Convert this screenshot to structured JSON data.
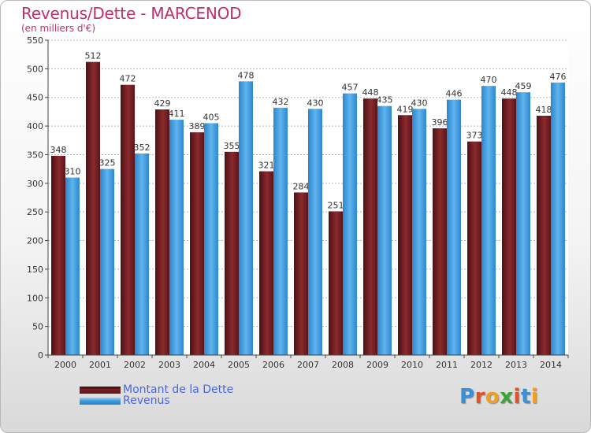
{
  "title": "Revenus/Dette - MARCENOD",
  "subtitle": "(en milliers d'€)",
  "logo_text": "Proxiti",
  "colors": {
    "dette": "#7b1f24",
    "revenus": "#3e9ee0",
    "title": "#c0306a",
    "legend_text": "#4a66e0"
  },
  "chart_data": {
    "type": "bar",
    "title": "Revenus/Dette - MARCENOD",
    "ylabel": "(en milliers d'€)",
    "xlabel": "",
    "ylim": [
      0,
      550
    ],
    "yticks": [
      0,
      50,
      100,
      150,
      200,
      250,
      300,
      350,
      400,
      450,
      500,
      550
    ],
    "grid": true,
    "legend_position": "bottom-left",
    "categories": [
      "2000",
      "2001",
      "2002",
      "2003",
      "2004",
      "2005",
      "2006",
      "2007",
      "2008",
      "2009",
      "2010",
      "2011",
      "2012",
      "2013",
      "2014"
    ],
    "series": [
      {
        "name": "Montant de la Dette",
        "color": "#7b1f24",
        "values": [
          348,
          512,
          472,
          429,
          389,
          355,
          321,
          284,
          251,
          448,
          419,
          396,
          373,
          448,
          418
        ]
      },
      {
        "name": "Revenus",
        "color": "#3e9ee0",
        "values": [
          310,
          325,
          352,
          411,
          405,
          478,
          432,
          430,
          457,
          435,
          430,
          446,
          470,
          459,
          476
        ]
      }
    ]
  }
}
